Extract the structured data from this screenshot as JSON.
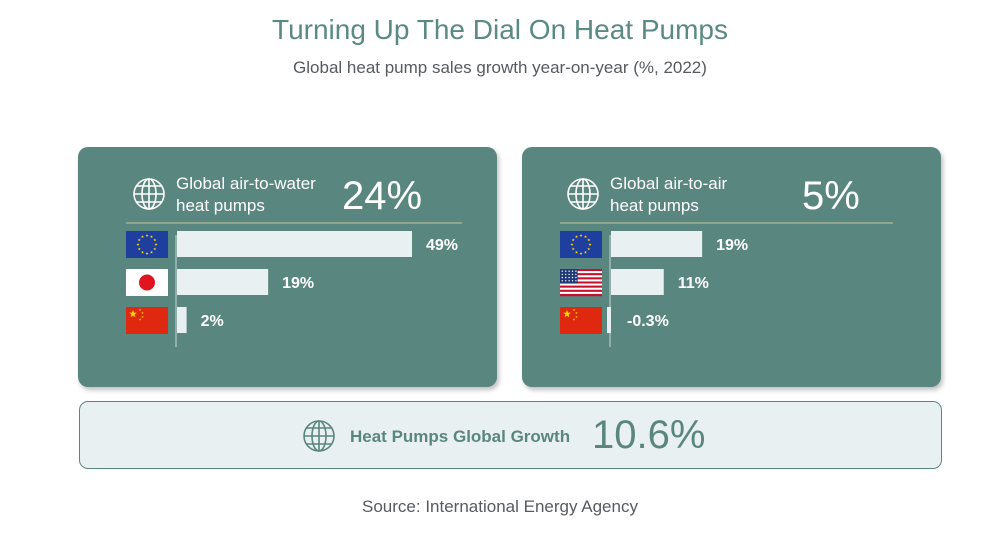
{
  "title": "Turning Up The Dial On Heat Pumps",
  "subtitle": "Global heat pump sales growth year-on-year (%, 2022)",
  "panels": [
    {
      "title_line1": "Global air-to-water",
      "title_line2": "heat pumps",
      "value": "24%",
      "icon": "globe-icon"
    },
    {
      "title_line1": "Global air-to-air",
      "title_line2": "heat pumps",
      "value": "5%",
      "icon": "globe-icon"
    }
  ],
  "total": {
    "label": "Heat Pumps Global Growth",
    "value": "10.6%",
    "icon": "globe-icon"
  },
  "source": "Source: International Energy Agency",
  "colors": {
    "panel": "#5a8680",
    "bar": "#e9f0f2",
    "title": "#5a8a83",
    "divider": "#c8c89a"
  },
  "chart_data": [
    {
      "type": "bar",
      "orientation": "horizontal",
      "categories": [
        "eu-flag-icon",
        "japan-flag-icon",
        "china-flag-icon"
      ],
      "values": [
        49,
        19,
        2
      ],
      "labels": [
        "49%",
        "19%",
        "2%"
      ],
      "xlim": [
        0,
        49
      ]
    },
    {
      "type": "bar",
      "orientation": "horizontal",
      "categories": [
        "eu-flag-icon",
        "usa-flag-icon",
        "china-flag-icon"
      ],
      "values": [
        19,
        11,
        -0.3
      ],
      "labels": [
        "19%",
        "11%",
        "-0.3%"
      ],
      "xlim": [
        0,
        49
      ]
    }
  ]
}
